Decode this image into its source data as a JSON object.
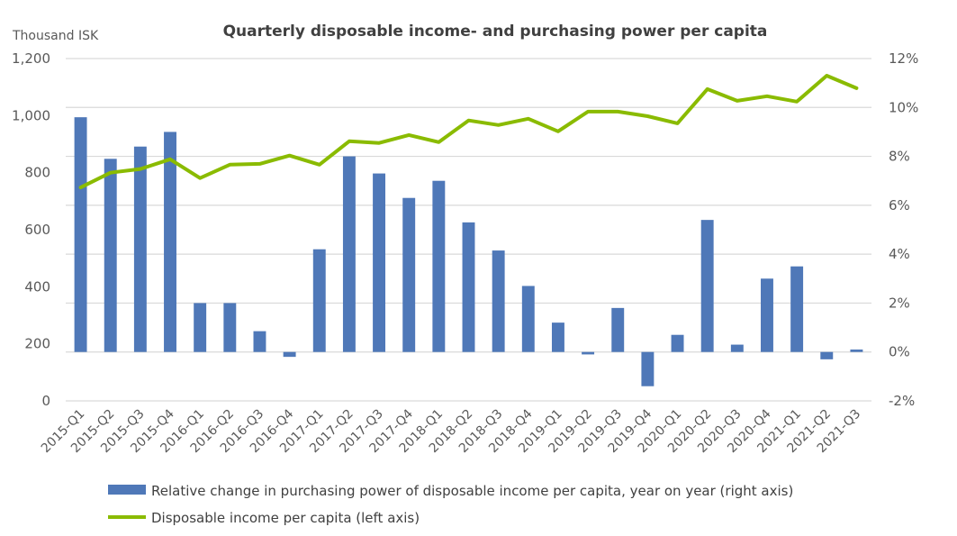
{
  "chart_data": {
    "type": "bar+line",
    "title": "Quarterly disposable income- and purchasing power per capita",
    "ylabel_left": "Thousand ISK",
    "ylim_left": [
      0,
      1200
    ],
    "yticks_left": [
      "0",
      "200",
      "400",
      "600",
      "800",
      "1,000",
      "1,200"
    ],
    "ylim_right": [
      -2,
      12
    ],
    "yticks_right": [
      "-2%",
      "0%",
      "2%",
      "4%",
      "6%",
      "8%",
      "10%",
      "12%"
    ],
    "grid": true,
    "legend_position": "bottom",
    "categories": [
      "2015-Q1",
      "2015-Q2",
      "2015-Q3",
      "2015-Q4",
      "2016-Q1",
      "2016-Q2",
      "2016-Q3",
      "2016-Q4",
      "2017-Q1",
      "2017-Q2",
      "2017-Q3",
      "2017-Q4",
      "2018-Q1",
      "2018-Q2",
      "2018-Q3",
      "2018-Q4",
      "2019-Q1",
      "2019-Q2",
      "2019-Q3",
      "2019-Q4",
      "2020-Q1",
      "2020-Q2",
      "2020-Q3",
      "2020-Q4",
      "2021-Q1",
      "2021-Q2",
      "2021-Q3"
    ],
    "series": [
      {
        "name": "Relative change in purchasing power of disposable income per capita, year on year (right axis)",
        "type": "bar",
        "axis": "right",
        "color": "#4f78b8",
        "values": [
          9.6,
          7.9,
          8.4,
          9.0,
          2.0,
          2.0,
          0.85,
          -0.2,
          4.2,
          8.0,
          7.3,
          6.3,
          7.0,
          5.3,
          4.15,
          2.7,
          1.2,
          -0.1,
          1.8,
          -1.4,
          0.7,
          5.4,
          0.3,
          3.0,
          3.5,
          -0.3,
          0.1
        ]
      },
      {
        "name": "Disposable income per capita (left axis)",
        "type": "line",
        "axis": "left",
        "color": "#8abb00",
        "values": [
          748,
          800,
          813,
          847,
          781,
          828,
          831,
          860,
          828,
          910,
          904,
          932,
          907,
          983,
          967,
          989,
          945,
          1014,
          1014,
          998,
          973,
          1093,
          1052,
          1068,
          1049,
          1140,
          1096
        ]
      }
    ]
  }
}
